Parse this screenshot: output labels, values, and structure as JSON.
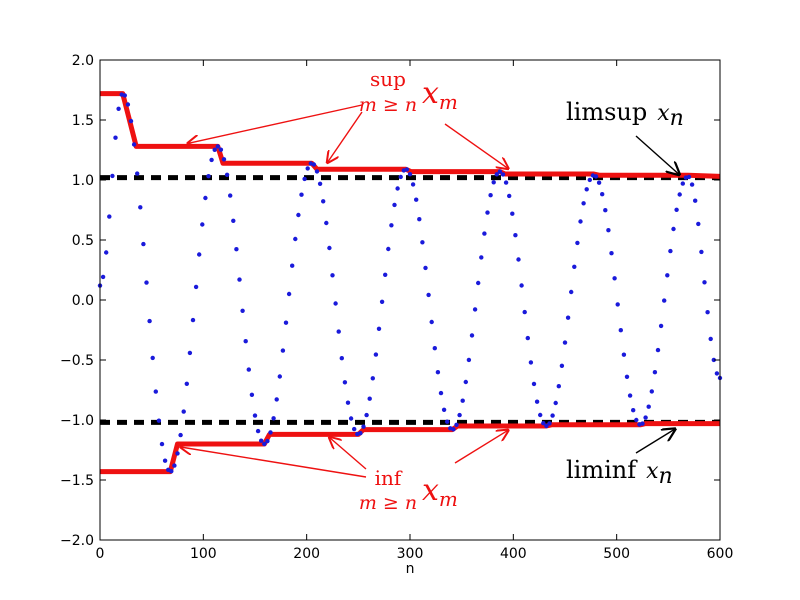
{
  "chart_data": {
    "type": "line",
    "title": "",
    "xlabel": "n",
    "ylabel": "",
    "xlim": [
      0,
      600
    ],
    "ylim": [
      -2.0,
      2.0
    ],
    "xticks": [
      0,
      100,
      200,
      300,
      400,
      500,
      600
    ],
    "yticks": [
      -2.0,
      -1.5,
      -1.0,
      -0.5,
      0.0,
      0.5,
      1.0,
      1.5,
      2.0
    ],
    "xtick_labels": [
      "0",
      "100",
      "200",
      "300",
      "400",
      "500",
      "600"
    ],
    "ytick_labels": [
      "−2.0",
      "−1.5",
      "−1.0",
      "−0.5",
      "0.0",
      "0.5",
      "1.0",
      "1.5",
      "2.0"
    ],
    "grid": false,
    "series": [
      {
        "role": "sequence",
        "style": "dotted",
        "color": "#1a1adb",
        "description_points": "x_n oscillating, period about 91, amplitude decaying from 1.72 toward 1.03",
        "x": [
          0,
          22,
          68,
          114,
          159,
          205,
          250,
          296,
          341,
          387,
          432,
          478,
          523,
          569,
          600
        ],
        "values": [
          0.12,
          1.72,
          -1.43,
          1.28,
          -1.2,
          1.14,
          -1.12,
          1.09,
          -1.08,
          1.07,
          -1.05,
          1.04,
          -1.04,
          1.03,
          -0.65
        ]
      },
      {
        "role": "sup_envelope",
        "style": "thick-line",
        "color": "#ee1111",
        "x": [
          0,
          22,
          35,
          114,
          119,
          205,
          210,
          296,
          301,
          387,
          392,
          478,
          483,
          569,
          600
        ],
        "values": [
          1.72,
          1.72,
          1.28,
          1.28,
          1.14,
          1.14,
          1.09,
          1.09,
          1.07,
          1.07,
          1.05,
          1.05,
          1.04,
          1.04,
          1.03
        ]
      },
      {
        "role": "inf_envelope",
        "style": "thick-line",
        "color": "#ee1111",
        "x": [
          0,
          68,
          75,
          159,
          164,
          250,
          255,
          341,
          346,
          432,
          437,
          523,
          528,
          600
        ],
        "values": [
          -1.43,
          -1.43,
          -1.2,
          -1.2,
          -1.12,
          -1.12,
          -1.08,
          -1.08,
          -1.05,
          -1.05,
          -1.04,
          -1.04,
          -1.03,
          -1.03
        ]
      },
      {
        "role": "limsup",
        "style": "dashed",
        "color": "#000000",
        "x": [
          0,
          600
        ],
        "values": [
          1.02,
          1.02
        ]
      },
      {
        "role": "liminf",
        "style": "dashed",
        "color": "#000000",
        "x": [
          0,
          600
        ],
        "values": [
          -1.02,
          -1.02
        ]
      }
    ],
    "annotations": {
      "sup": {
        "op": "sup",
        "subscript": "m ≥ n",
        "symbol": "x",
        "index": "m",
        "color": "#ee1111",
        "arrow_targets": [
          [
            85,
            1.28
          ],
          [
            220,
            1.12
          ],
          [
            395,
            1.07
          ]
        ]
      },
      "inf": {
        "op": "inf",
        "subscript": "m ≥ n",
        "symbol": "x",
        "index": "m",
        "color": "#ee1111",
        "arrow_targets": [
          [
            78,
            -1.2
          ],
          [
            222,
            -1.12
          ],
          [
            395,
            -1.06
          ]
        ]
      },
      "limsup": {
        "op": "limsup",
        "symbol": "x",
        "index": "n",
        "arrow_target": [
          550,
          1.02
        ]
      },
      "liminf": {
        "op": "liminf",
        "symbol": "x",
        "index": "n",
        "arrow_target": [
          540,
          -1.05
        ]
      }
    }
  }
}
